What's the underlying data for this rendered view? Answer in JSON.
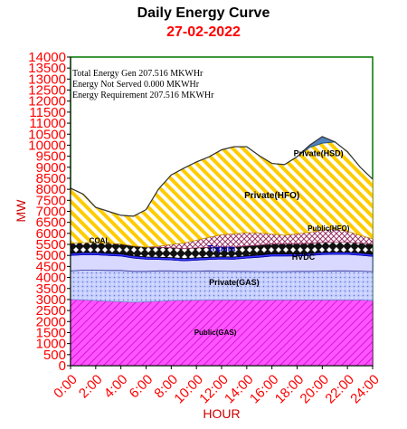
{
  "chart_data": {
    "type": "area",
    "title": "Daily Energy Curve",
    "subtitle": "27-02-2022",
    "xlabel": "HOUR",
    "ylabel": "MW",
    "x": [
      0,
      1,
      2,
      3,
      4,
      5,
      6,
      7,
      8,
      9,
      10,
      11,
      12,
      13,
      14,
      15,
      16,
      17,
      18,
      19,
      20,
      21,
      22,
      23,
      24
    ],
    "x_tick_labels": [
      "0:00",
      "2:00",
      "4:00",
      "6:00",
      "8:00",
      "10:00",
      "12:00",
      "14:00",
      "16:00",
      "18:00",
      "20:00",
      "22:00",
      "24:00"
    ],
    "x_tick_positions": [
      0,
      2,
      4,
      6,
      8,
      10,
      12,
      14,
      16,
      18,
      20,
      22,
      24
    ],
    "ylim": [
      0,
      14000
    ],
    "y_ticks": [
      0,
      500,
      1000,
      1500,
      2000,
      2500,
      3000,
      3500,
      4000,
      4500,
      5000,
      5500,
      6000,
      6500,
      7000,
      7500,
      8000,
      8500,
      9000,
      9500,
      10000,
      10500,
      11000,
      11500,
      12000,
      12500,
      13000,
      13500,
      14000
    ],
    "grid": false,
    "annotations": [
      "Total Energy Gen 207.516 MKWHr",
      "Energy Not Served  0.000 MKWHr",
      "Energy Requirement      207.516 MKWHr"
    ],
    "series": [
      {
        "name": "Public(GAS)",
        "color": "#ff33ff",
        "values": [
          3000,
          2980,
          2950,
          2920,
          2900,
          2880,
          2900,
          2920,
          2950,
          2960,
          2970,
          2980,
          2980,
          2980,
          2980,
          2980,
          2980,
          2980,
          2980,
          2980,
          2980,
          2980,
          2980,
          2980,
          2960
        ]
      },
      {
        "name": "Private(GAS)",
        "color": "#9fb3ff",
        "values": [
          1300,
          1350,
          1380,
          1400,
          1420,
          1400,
          1380,
          1380,
          1350,
          1320,
          1320,
          1320,
          1310,
          1300,
          1300,
          1290,
          1290,
          1290,
          1300,
          1300,
          1310,
          1320,
          1320,
          1310,
          1300
        ]
      },
      {
        "name": "HVDC",
        "color": "#d9d9ff",
        "values": [
          700,
          700,
          700,
          680,
          650,
          600,
          550,
          520,
          500,
          480,
          500,
          520,
          550,
          550,
          600,
          650,
          700,
          700,
          700,
          720,
          750,
          750,
          750,
          720,
          700
        ]
      },
      {
        "name": "Tripura",
        "color": "#3333ff",
        "values": [
          100,
          100,
          100,
          100,
          100,
          100,
          100,
          100,
          100,
          100,
          100,
          100,
          100,
          100,
          100,
          100,
          100,
          100,
          100,
          100,
          100,
          100,
          100,
          100,
          100
        ]
      },
      {
        "name": "COAL",
        "color": "#000000",
        "values": [
          450,
          450,
          450,
          450,
          450,
          450,
          450,
          450,
          450,
          450,
          450,
          450,
          450,
          450,
          450,
          450,
          450,
          450,
          450,
          450,
          450,
          450,
          450,
          450,
          450
        ]
      },
      {
        "name": "Public(HFO)",
        "color": "#ff00ff",
        "values": [
          0,
          0,
          0,
          0,
          0,
          0,
          0,
          50,
          150,
          250,
          350,
          450,
          550,
          600,
          600,
          550,
          450,
          400,
          450,
          500,
          550,
          600,
          500,
          350,
          250
        ]
      },
      {
        "name": "Private(HFO)",
        "color": "#ffdd00",
        "values": [
          2500,
          2200,
          1600,
          1450,
          1300,
          1350,
          1700,
          2600,
          3150,
          3400,
          3550,
          3650,
          3850,
          3950,
          3900,
          3500,
          3200,
          3200,
          3500,
          3850,
          3950,
          3950,
          3600,
          3100,
          2700
        ]
      },
      {
        "name": "Private(HSD)",
        "color": "#4f81bd",
        "values": [
          0,
          0,
          0,
          0,
          0,
          0,
          0,
          0,
          0,
          0,
          0,
          0,
          0,
          0,
          0,
          0,
          0,
          0,
          0,
          100,
          300,
          0,
          0,
          0,
          0
        ]
      }
    ],
    "series_labels": [
      "Public(GAS)",
      "Private(GAS)",
      "HVDC",
      "Tripura",
      "COAL",
      "Public(HFO)",
      "Private(HFO)",
      "Private(HSD)"
    ]
  }
}
